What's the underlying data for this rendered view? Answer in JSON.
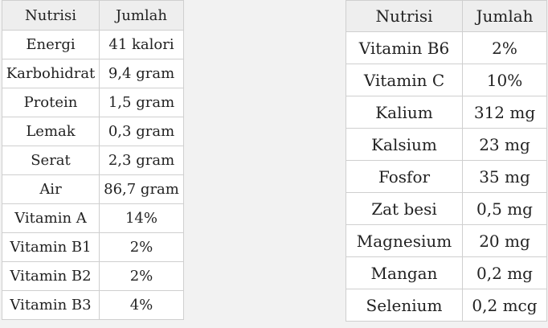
{
  "left_table": {
    "headers": [
      "Nutrisi",
      "Jumlah"
    ],
    "rows": [
      [
        "Energi",
        "41 kalori"
      ],
      [
        "Karbohidrat",
        "9,4 gram"
      ],
      [
        "Protein",
        "1,5 gram"
      ],
      [
        "Lemak",
        "0,3 gram"
      ],
      [
        "Serat",
        "2,3 gram"
      ],
      [
        "Air",
        "86,7 gram"
      ],
      [
        "Vitamin A",
        "14%"
      ],
      [
        "Vitamin B1",
        "2%"
      ],
      [
        "Vitamin B2",
        "2%"
      ],
      [
        "Vitamin B3",
        "4%"
      ]
    ]
  },
  "right_table": {
    "headers": [
      "Nutrisi",
      "Jumlah"
    ],
    "rows": [
      [
        "Vitamin B6",
        "2%"
      ],
      [
        "Vitamin C",
        "10%"
      ],
      [
        "Kalium",
        "312 mg"
      ],
      [
        "Kalsium",
        "23 mg"
      ],
      [
        "Fosfor",
        "35 mg"
      ],
      [
        "Zat besi",
        "0,5 mg"
      ],
      [
        "Magnesium",
        "20 mg"
      ],
      [
        "Mangan",
        "0,2 mg"
      ],
      [
        "Selenium",
        "0,2 mcg"
      ]
    ]
  }
}
